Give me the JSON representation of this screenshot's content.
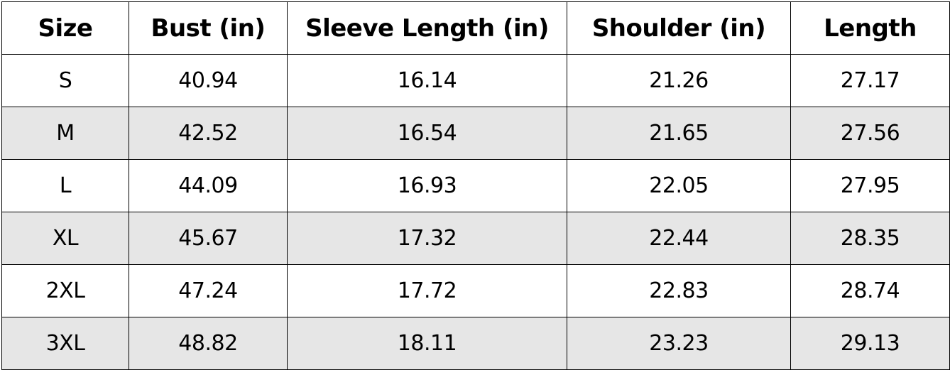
{
  "table": {
    "headers": [
      "Size",
      "Bust (in)",
      "Sleeve Length (in)",
      "Shoulder (in)",
      "Length"
    ],
    "rows": [
      [
        "S",
        "40.94",
        "16.14",
        "21.26",
        "27.17"
      ],
      [
        "M",
        "42.52",
        "16.54",
        "21.65",
        "27.56"
      ],
      [
        "L",
        "44.09",
        "16.93",
        "22.05",
        "27.95"
      ],
      [
        "XL",
        "45.67",
        "17.32",
        "22.44",
        "28.35"
      ],
      [
        "2XL",
        "47.24",
        "17.72",
        "22.83",
        "28.74"
      ],
      [
        "3XL",
        "48.82",
        "18.11",
        "23.23",
        "29.13"
      ]
    ],
    "colors": {
      "alt_row": "#e6e6e6",
      "row": "#ffffff",
      "border": "#000000"
    }
  }
}
